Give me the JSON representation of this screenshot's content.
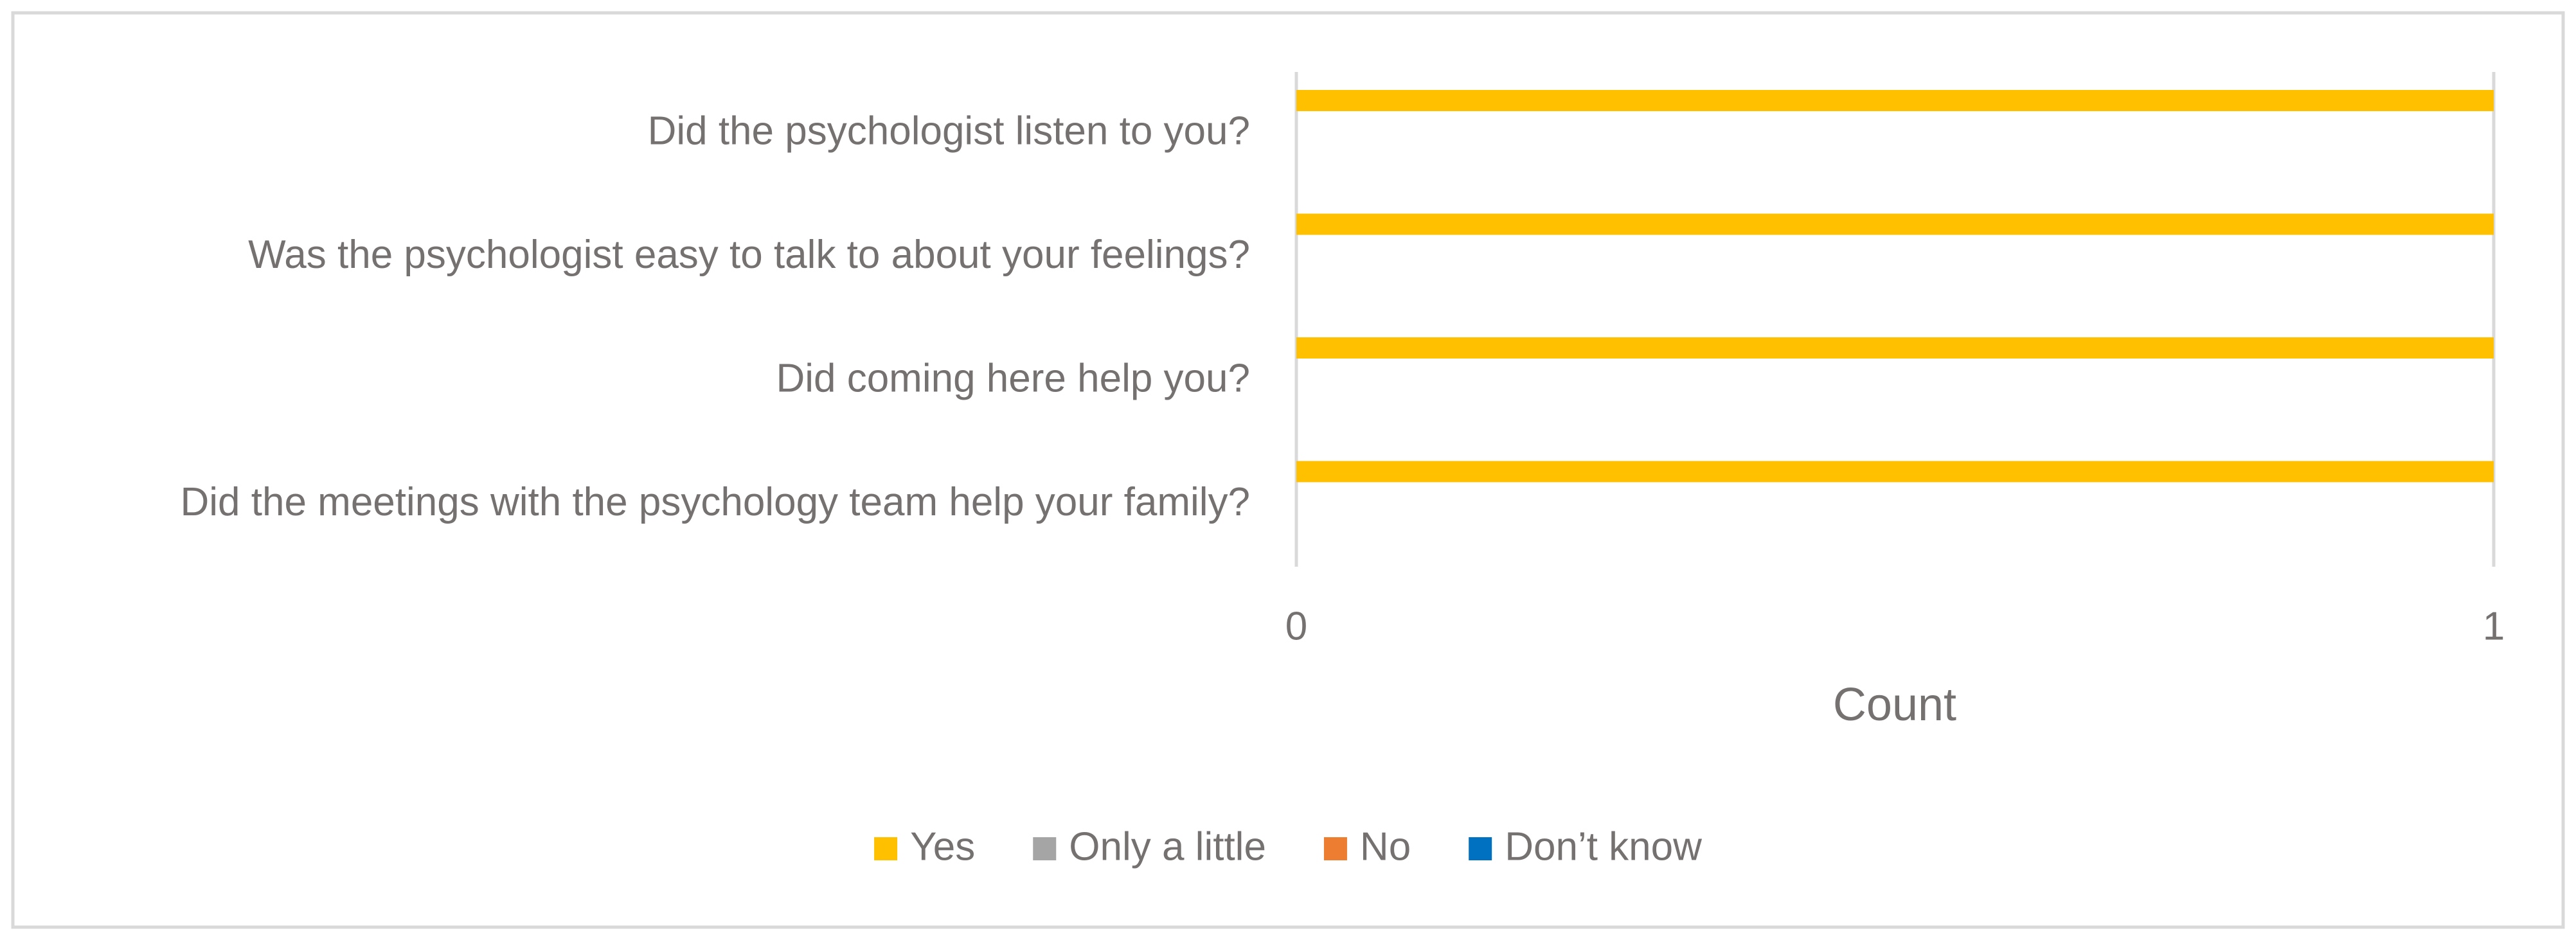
{
  "chart_data": {
    "type": "bar",
    "orientation": "horizontal",
    "categories": [
      "Did the psychologist listen to you?",
      "Was the psychologist easy to talk to about your feelings?",
      "Did coming here help you?",
      "Did the meetings with the psychology team help your family?"
    ],
    "series": [
      {
        "name": "Yes",
        "color": "#FFC000",
        "values": [
          1,
          1,
          1,
          1
        ]
      },
      {
        "name": "Only a little",
        "color": "#A5A5A5",
        "values": [
          0,
          0,
          0,
          0
        ]
      },
      {
        "name": "No",
        "color": "#ED7D31",
        "values": [
          0,
          0,
          0,
          0
        ]
      },
      {
        "name": "Don’t know",
        "color": "#0070C0",
        "values": [
          0,
          0,
          0,
          0
        ]
      }
    ],
    "x_label": "Count",
    "xlim": [
      0,
      1
    ],
    "xticks": [
      0,
      1
    ],
    "grid": true,
    "legend": "bottom"
  }
}
